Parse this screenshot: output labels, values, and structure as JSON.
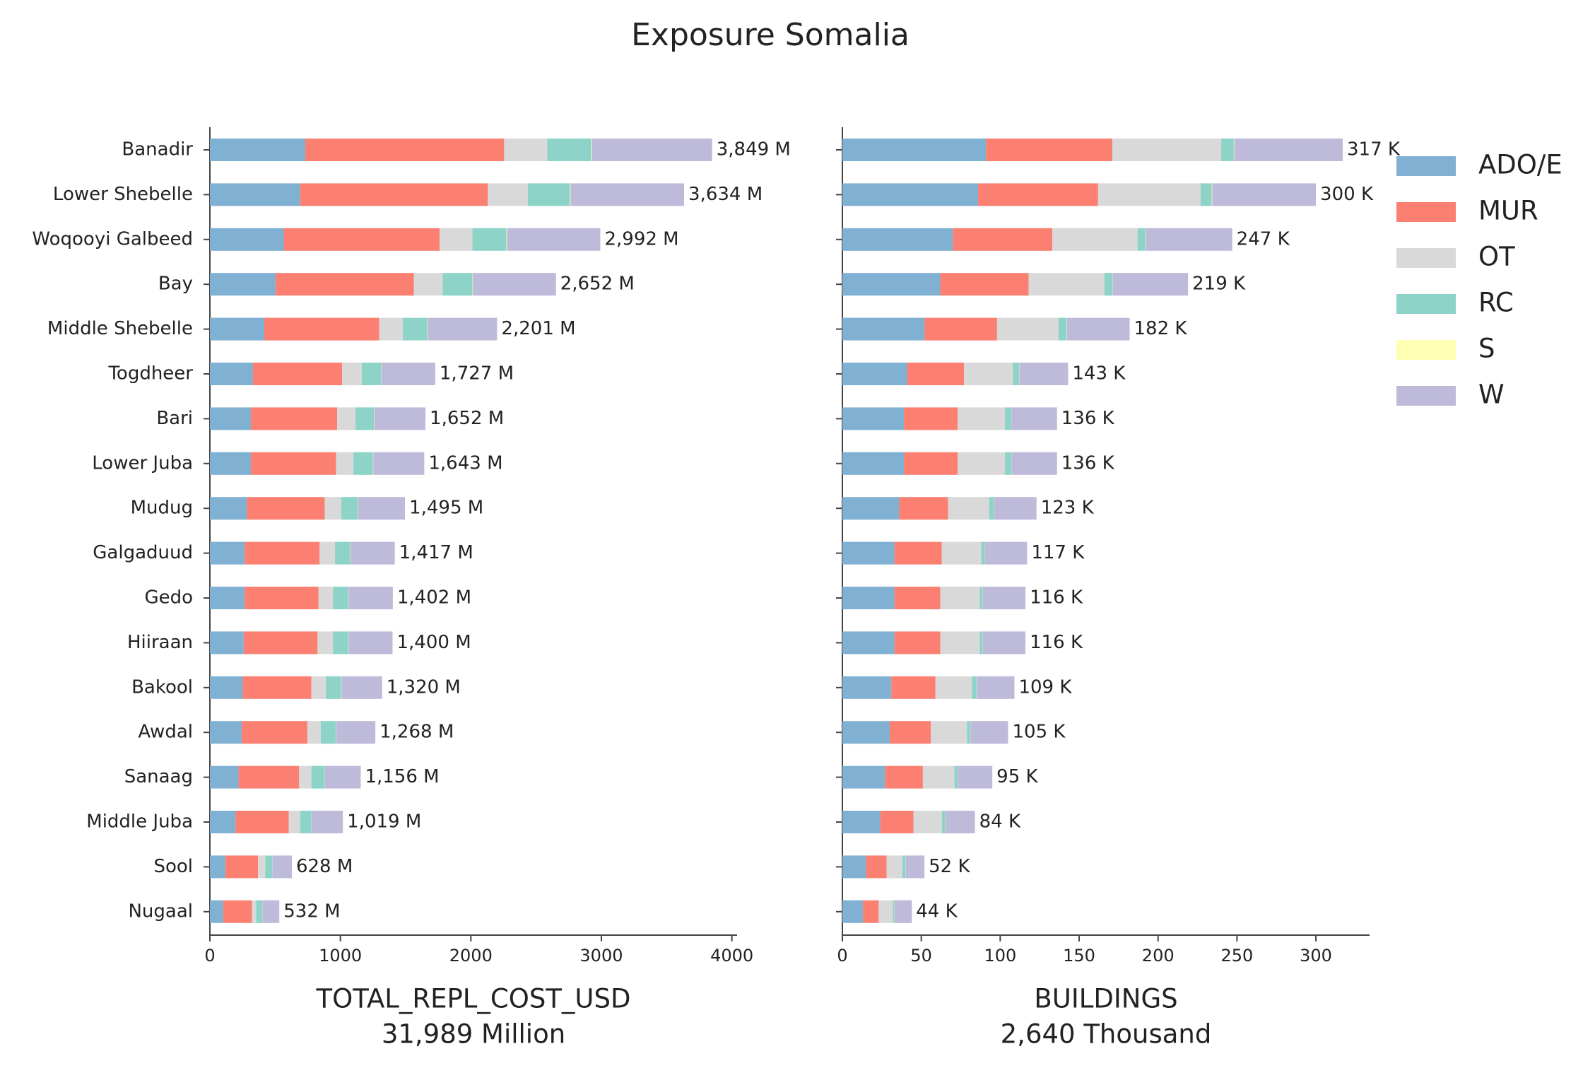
{
  "title": "Exposure Somalia",
  "chart_data": [
    {
      "type": "bar",
      "orientation": "horizontal",
      "xlabel": "TOTAL_REPL_COST_USD",
      "xlabel_note": "31,989 Million",
      "categories": [
        "Banadir",
        "Lower Shebelle",
        "Woqooyi Galbeed",
        "Bay",
        "Middle Shebelle",
        "Togdheer",
        "Bari",
        "Lower Juba",
        "Mudug",
        "Galgaduud",
        "Gedo",
        "Hiiraan",
        "Bakool",
        "Awdal",
        "Sanaag",
        "Middle Juba",
        "Sool",
        "Nugaal"
      ],
      "series": [
        {
          "name": "ADO/E",
          "color": "#80b1d3",
          "values": [
            731,
            692,
            566,
            503,
            417,
            330,
            314,
            314,
            283,
            267,
            267,
            259,
            252,
            244,
            220,
            197,
            118,
            102
          ]
        },
        {
          "name": "MUR",
          "color": "#fb8072",
          "values": [
            1524,
            1438,
            1195,
            1061,
            880,
            684,
            661,
            653,
            597,
            574,
            566,
            566,
            526,
            503,
            464,
            408,
            251,
            220
          ]
        },
        {
          "name": "OT",
          "color": "#d9d9d9",
          "values": [
            330,
            307,
            251,
            220,
            181,
            149,
            141,
            133,
            126,
            118,
            110,
            118,
            110,
            102,
            94,
            87,
            55,
            32
          ]
        },
        {
          "name": "RC",
          "color": "#8dd3c7",
          "values": [
            338,
            322,
            260,
            228,
            188,
            150,
            142,
            150,
            126,
            118,
            118,
            118,
            118,
            118,
            102,
            86,
            55,
            47
          ]
        },
        {
          "name": "S",
          "color": "#ffffb3",
          "values": [
            5,
            5,
            5,
            3,
            3,
            2,
            2,
            2,
            2,
            2,
            2,
            2,
            2,
            2,
            2,
            1,
            1,
            1
          ]
        },
        {
          "name": "W",
          "color": "#bebada",
          "values": [
            921,
            870,
            715,
            637,
            532,
            412,
            392,
            391,
            361,
            338,
            339,
            337,
            312,
            299,
            274,
            240,
            148,
            130
          ]
        }
      ],
      "totals": [
        3849,
        3634,
        2992,
        2652,
        2201,
        1727,
        1652,
        1643,
        1495,
        1417,
        1402,
        1400,
        1320,
        1268,
        1156,
        1019,
        628,
        532
      ],
      "total_labels": [
        "3,849 M",
        "3,634 M",
        "2,992 M",
        "2,652 M",
        "2,201 M",
        "1,727 M",
        "1,652 M",
        "1,643 M",
        "1,495 M",
        "1,417 M",
        "1,402 M",
        "1,400 M",
        "1,320 M",
        "1,268 M",
        "1,156 M",
        "1,019 M",
        "628 M",
        "532 M"
      ],
      "xlim": [
        0,
        4040
      ],
      "xticks": [
        0,
        1000,
        2000,
        3000,
        4000
      ]
    },
    {
      "type": "bar",
      "orientation": "horizontal",
      "xlabel": "BUILDINGS",
      "xlabel_note": "2,640 Thousand",
      "series": [
        {
          "name": "ADO/E",
          "color": "#80b1d3",
          "values": [
            91,
            86,
            70,
            62,
            52,
            41,
            39,
            39,
            36,
            33,
            33,
            33,
            31,
            30,
            27,
            24,
            15,
            13
          ]
        },
        {
          "name": "MUR",
          "color": "#fb8072",
          "values": [
            80,
            76,
            63,
            56,
            46,
            36,
            34,
            34,
            31,
            30,
            29,
            29,
            28,
            26,
            24,
            21,
            13,
            10
          ]
        },
        {
          "name": "OT",
          "color": "#d9d9d9",
          "values": [
            69,
            65,
            54,
            48,
            39,
            31,
            30,
            30,
            26,
            25,
            25,
            25,
            23,
            23,
            20,
            18,
            10,
            9
          ]
        },
        {
          "name": "RC",
          "color": "#8dd3c7",
          "values": [
            8,
            7,
            5,
            5,
            5,
            4,
            4,
            4,
            3,
            2,
            2,
            2,
            3,
            2,
            2,
            2,
            2,
            1
          ]
        },
        {
          "name": "S",
          "color": "#ffffb3",
          "values": [
            0.3,
            0.3,
            0.2,
            0.2,
            0.2,
            0.1,
            0.1,
            0.1,
            0.1,
            0.1,
            0.1,
            0.1,
            0.1,
            0.1,
            0.1,
            0.1,
            0.1,
            0.1
          ]
        },
        {
          "name": "W",
          "color": "#bebada",
          "values": [
            68.7,
            65.7,
            54.8,
            47.8,
            39.8,
            30.9,
            28.9,
            28.9,
            26.9,
            26.9,
            26.9,
            26.9,
            23.9,
            23.9,
            21.9,
            18.9,
            11.9,
            10.9
          ]
        }
      ],
      "totals": [
        317,
        300,
        247,
        219,
        182,
        143,
        136,
        136,
        123,
        117,
        116,
        116,
        109,
        105,
        95,
        84,
        52,
        44
      ],
      "total_labels": [
        "317 K",
        "300 K",
        "247 K",
        "219 K",
        "182 K",
        "143 K",
        "136 K",
        "136 K",
        "123 K",
        "117 K",
        "116 K",
        "116 K",
        "109 K",
        "105 K",
        "95 K",
        "84 K",
        "52 K",
        "44 K"
      ],
      "xlim": [
        0,
        334
      ],
      "xticks": [
        0,
        50,
        100,
        150,
        200,
        250,
        300
      ]
    }
  ]
}
